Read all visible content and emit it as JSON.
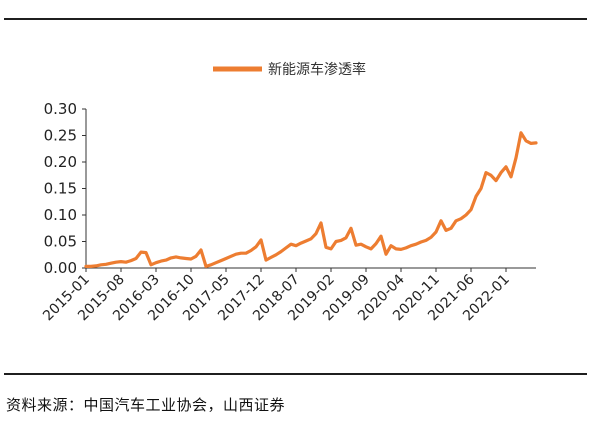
{
  "source_note": "资料来源：中国汽车工业协会，山西证券",
  "chart_data": {
    "type": "line",
    "title": "",
    "xlabel": "",
    "ylabel": "",
    "ylim": [
      0,
      0.3
    ],
    "y_ticks": [
      "0.00",
      "0.05",
      "0.10",
      "0.15",
      "0.20",
      "0.25",
      "0.30"
    ],
    "x_tick_labels": [
      "2015-01",
      "2015-08",
      "2016-03",
      "2016-10",
      "2017-05",
      "2017-12",
      "2018-07",
      "2019-02",
      "2019-09",
      "2020-04",
      "2020-11",
      "2021-06",
      "2022-01"
    ],
    "legend": {
      "position": "top-center"
    },
    "grid": false,
    "series": [
      {
        "name": "新能源车渗透率",
        "color": "#ED7D31",
        "x": [
          "2015-01",
          "2015-02",
          "2015-03",
          "2015-04",
          "2015-05",
          "2015-06",
          "2015-07",
          "2015-08",
          "2015-09",
          "2015-10",
          "2015-11",
          "2015-12",
          "2016-01",
          "2016-02",
          "2016-03",
          "2016-04",
          "2016-05",
          "2016-06",
          "2016-07",
          "2016-08",
          "2016-09",
          "2016-10",
          "2016-11",
          "2016-12",
          "2017-01",
          "2017-02",
          "2017-03",
          "2017-04",
          "2017-05",
          "2017-06",
          "2017-07",
          "2017-08",
          "2017-09",
          "2017-10",
          "2017-11",
          "2017-12",
          "2018-01",
          "2018-02",
          "2018-03",
          "2018-04",
          "2018-05",
          "2018-06",
          "2018-07",
          "2018-08",
          "2018-09",
          "2018-10",
          "2018-11",
          "2018-12",
          "2019-01",
          "2019-02",
          "2019-03",
          "2019-04",
          "2019-05",
          "2019-06",
          "2019-07",
          "2019-08",
          "2019-09",
          "2019-10",
          "2019-11",
          "2019-12",
          "2020-01",
          "2020-02",
          "2020-03",
          "2020-04",
          "2020-05",
          "2020-06",
          "2020-07",
          "2020-08",
          "2020-09",
          "2020-10",
          "2020-11",
          "2020-12",
          "2021-01",
          "2021-02",
          "2021-03",
          "2021-04",
          "2021-05",
          "2021-06",
          "2021-07",
          "2021-08",
          "2021-09",
          "2021-10",
          "2021-11",
          "2021-12",
          "2022-01",
          "2022-02",
          "2022-03",
          "2022-04",
          "2022-05",
          "2022-06",
          "2022-07"
        ],
        "values": [
          0.003,
          0.003,
          0.004,
          0.006,
          0.007,
          0.009,
          0.011,
          0.012,
          0.011,
          0.014,
          0.018,
          0.03,
          0.029,
          0.006,
          0.01,
          0.013,
          0.015,
          0.019,
          0.021,
          0.019,
          0.018,
          0.017,
          0.022,
          0.034,
          0.003,
          0.006,
          0.01,
          0.014,
          0.018,
          0.022,
          0.026,
          0.028,
          0.028,
          0.033,
          0.04,
          0.053,
          0.015,
          0.02,
          0.025,
          0.031,
          0.038,
          0.045,
          0.042,
          0.047,
          0.051,
          0.055,
          0.065,
          0.085,
          0.039,
          0.036,
          0.05,
          0.052,
          0.057,
          0.075,
          0.043,
          0.045,
          0.04,
          0.036,
          0.046,
          0.06,
          0.026,
          0.042,
          0.036,
          0.035,
          0.038,
          0.042,
          0.045,
          0.049,
          0.052,
          0.058,
          0.068,
          0.089,
          0.071,
          0.075,
          0.089,
          0.093,
          0.1,
          0.11,
          0.135,
          0.15,
          0.18,
          0.175,
          0.165,
          0.18,
          0.191,
          0.172,
          0.208,
          0.255,
          0.24,
          0.235,
          0.236
        ]
      }
    ]
  }
}
